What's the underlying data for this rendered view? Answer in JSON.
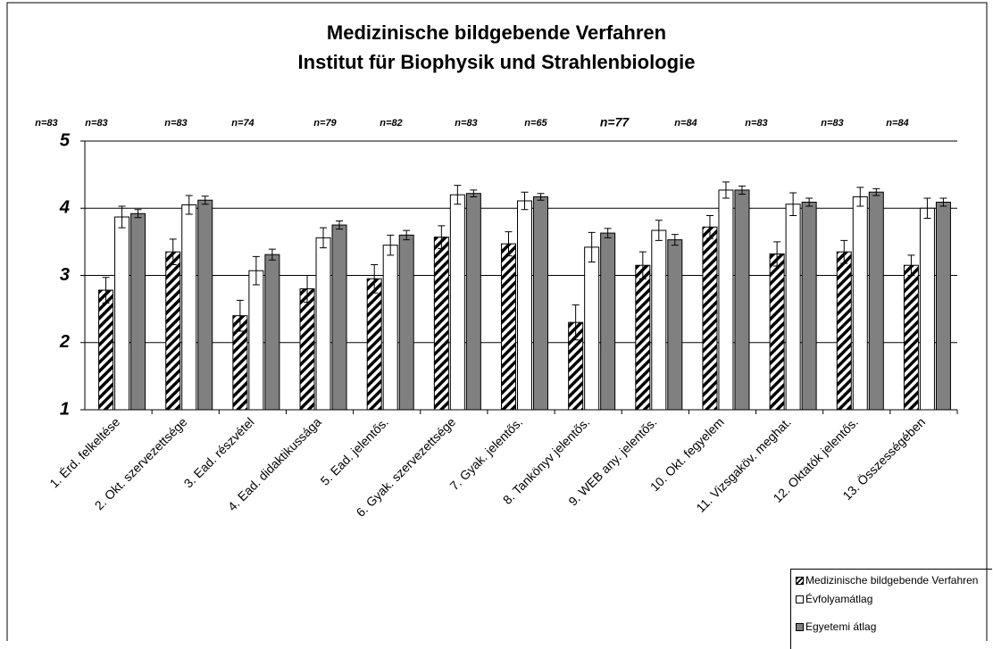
{
  "chart_data": {
    "type": "bar",
    "title": [
      "Medizinische bildgebende Verfahren",
      "Institut für Biophysik und Strahlenbiologie"
    ],
    "annotations": [
      "n=83",
      "n=83",
      "n=83",
      "n=74",
      "n=79",
      "n=82",
      "n=83",
      "n=65",
      "n=77",
      "n=84",
      "n=83",
      "n=83",
      "n=84"
    ],
    "categories": [
      "1. Érd. felkeltése",
      "2. Okt. szervezettsége",
      "3. Ead. részvétel",
      "4. Ead. didaktikussága",
      "5. Ead. jelentős.",
      "6. Gyak. szervezettsége",
      "7. Gyak. jelentős.",
      "8. Tankönyv jelentős.",
      "9. WEB any. jelentős.",
      "10. Okt. fegyelem",
      "11. Vizsgaköv. meghat.",
      "12. Oktatók jelentős.",
      "13. Összességében"
    ],
    "series": [
      {
        "name": "Medizinische bildgebende Verfahren",
        "color": "hatch",
        "values": [
          2.78,
          3.35,
          2.4,
          2.8,
          2.95,
          3.57,
          3.47,
          2.3,
          3.15,
          3.72,
          3.32,
          3.35,
          3.15
        ],
        "errors": [
          0.19,
          0.19,
          0.23,
          0.2,
          0.21,
          0.17,
          0.18,
          0.26,
          0.2,
          0.17,
          0.18,
          0.17,
          0.15
        ]
      },
      {
        "name": "Évfolyamátlag",
        "color": "#ffffff",
        "values": [
          3.87,
          4.05,
          3.07,
          3.56,
          3.45,
          4.2,
          4.11,
          3.42,
          3.67,
          4.27,
          4.06,
          4.17,
          4.0
        ],
        "errors": [
          0.16,
          0.14,
          0.21,
          0.15,
          0.15,
          0.14,
          0.13,
          0.22,
          0.15,
          0.12,
          0.17,
          0.14,
          0.15
        ]
      },
      {
        "name": "Egyetemi átlag",
        "color": "#808080",
        "values": [
          3.92,
          4.12,
          3.31,
          3.75,
          3.6,
          4.22,
          4.17,
          3.63,
          3.53,
          4.27,
          4.09,
          4.24,
          4.09
        ],
        "errors": [
          0.06,
          0.06,
          0.08,
          0.06,
          0.07,
          0.05,
          0.05,
          0.07,
          0.08,
          0.06,
          0.06,
          0.05,
          0.06
        ]
      }
    ],
    "ylim": [
      1,
      5
    ],
    "yticks": [
      1,
      2,
      3,
      4,
      5
    ],
    "grid": true,
    "legend": "bottom-right"
  }
}
